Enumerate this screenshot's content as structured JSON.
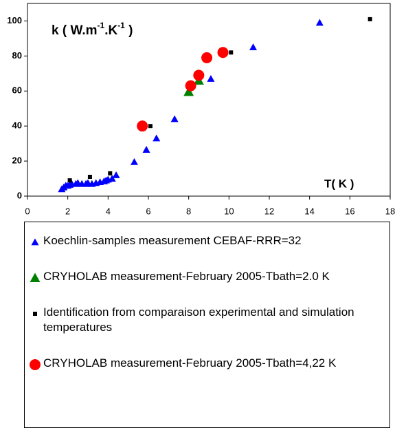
{
  "chart_data": {
    "type": "scatter",
    "y_label_parts": [
      "k ( W.m",
      "-1",
      ".K",
      "-1",
      " )"
    ],
    "x_label": "T( K )",
    "xlim": [
      0,
      18
    ],
    "xticks": [
      0,
      2,
      4,
      6,
      8,
      10,
      12,
      14,
      16,
      18
    ],
    "ylim": [
      0,
      110
    ],
    "yticks": [
      0,
      20,
      40,
      60,
      80,
      100
    ],
    "series": [
      {
        "name": "Koechlin-samples measurement CEBAF-RRR=32",
        "color": "#0000ff",
        "marker": "triangle",
        "x": [
          1.7,
          1.8,
          1.9,
          2.0,
          2.1,
          2.2,
          2.4,
          2.5,
          2.7,
          2.9,
          3.0,
          3.2,
          3.4,
          3.6,
          3.8,
          3.9,
          4.0,
          4.2,
          4.4,
          5.3,
          5.9,
          6.4,
          7.3,
          9.1,
          11.2,
          14.5
        ],
        "values": [
          4,
          5,
          6,
          6,
          6.5,
          7,
          7,
          7.5,
          7,
          7,
          7.5,
          7,
          7.5,
          8,
          8.5,
          9,
          9.5,
          10,
          12,
          19.5,
          26.5,
          33,
          44,
          67,
          85,
          99
        ]
      },
      {
        "name": "CRYHOLAB measurement-February 2005-Tbath=2.0 K",
        "color": "#008000",
        "marker": "triangle-large",
        "x": [
          8.0,
          8.5
        ],
        "values": [
          59.5,
          66
        ]
      },
      {
        "name": "Identification from comparaison experimental and simulation temperatures",
        "color": "#000000",
        "marker": "square",
        "x": [
          2.1,
          3.1,
          4.1,
          6.1,
          10.1,
          17.0
        ],
        "values": [
          9,
          11,
          13,
          40,
          82,
          101
        ]
      },
      {
        "name": "CRYHOLAB measurement-February 2005-Tbath=4,22 K",
        "color": "#ff0000",
        "marker": "circle",
        "x": [
          5.7,
          8.1,
          8.5,
          8.9,
          9.7
        ],
        "values": [
          40,
          63,
          69,
          79,
          82
        ]
      }
    ]
  }
}
